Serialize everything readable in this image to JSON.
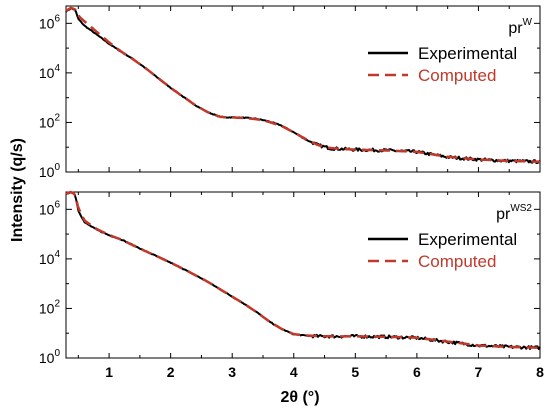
{
  "chart_data": {
    "type": "line",
    "ylabel": "Intensity (q/s)",
    "xlabel": "2θ (°)",
    "xlim": [
      0.3,
      8
    ],
    "ylim": [
      1,
      5000000
    ],
    "yscale": "log",
    "x_ticks": [
      "1",
      "2",
      "3",
      "4",
      "5",
      "6",
      "7",
      "8"
    ],
    "x_tick_values": [
      1,
      2,
      3,
      4,
      5,
      6,
      7,
      8
    ],
    "y_ticks": [
      {
        "base": "10",
        "exp": "0",
        "value": 1
      },
      {
        "base": "10",
        "exp": "2",
        "value": 100
      },
      {
        "base": "10",
        "exp": "4",
        "value": 10000
      },
      {
        "base": "10",
        "exp": "6",
        "value": 1000000
      }
    ],
    "legend": {
      "experimental": "Experimental",
      "computed": "Computed",
      "placement": "top-right"
    },
    "colors": {
      "experimental": "#000000",
      "computed": "#c0392b"
    },
    "panels": [
      {
        "label": "pr",
        "label_sup": "W",
        "series": [
          {
            "name": "Experimental",
            "x": [
              0.3,
              0.38,
              0.45,
              0.5,
              0.6,
              0.8,
              1.0,
              1.2,
              1.4,
              1.6,
              1.8,
              2.0,
              2.2,
              2.4,
              2.6,
              2.8,
              2.9,
              3.0,
              3.2,
              3.4,
              3.6,
              3.8,
              4.0,
              4.2,
              4.4,
              4.6,
              4.8,
              5.0,
              5.5,
              6.0,
              6.5,
              7.0,
              7.5,
              8.0
            ],
            "y": [
              3000000,
              4000000,
              3500000,
              1500000,
              800000,
              350000,
              150000,
              70000,
              35000,
              15000,
              6000,
              2500,
              1100,
              500,
              260,
              170,
              160,
              160,
              155,
              140,
              110,
              75,
              40,
              20,
              12,
              9,
              8.5,
              8,
              7.5,
              6.5,
              4,
              3.2,
              2.8,
              2.6
            ]
          },
          {
            "name": "Computed",
            "x": [
              0.3,
              0.38,
              0.45,
              0.5,
              0.6,
              0.8,
              1.0,
              1.2,
              1.4,
              1.6,
              1.8,
              2.0,
              2.2,
              2.4,
              2.6,
              2.8,
              2.9,
              3.0,
              3.2,
              3.4,
              3.6,
              3.8,
              4.0,
              4.2,
              4.4,
              4.6,
              4.8,
              5.0,
              5.5,
              6.0,
              6.5,
              7.0,
              7.5,
              8.0
            ],
            "y": [
              3200000,
              4200000,
              3700000,
              2000000,
              1200000,
              450000,
              170000,
              72000,
              34000,
              15000,
              6100,
              2500,
              1100,
              500,
              260,
              170,
              160,
              160,
              150,
              135,
              105,
              72,
              40,
              21,
              12,
              9.2,
              8.5,
              8,
              7.4,
              6.5,
              4.1,
              3.2,
              2.8,
              2.6
            ]
          }
        ]
      },
      {
        "label": "pr",
        "label_sup": "WS2",
        "series": [
          {
            "name": "Experimental",
            "x": [
              0.3,
              0.38,
              0.45,
              0.5,
              0.6,
              0.8,
              1.0,
              1.2,
              1.4,
              1.6,
              1.8,
              2.0,
              2.2,
              2.4,
              2.6,
              2.8,
              3.0,
              3.2,
              3.4,
              3.6,
              3.8,
              4.0,
              4.2,
              4.4,
              4.6,
              5.0,
              5.5,
              6.0,
              6.5,
              7.0,
              7.5,
              8.0
            ],
            "y": [
              4000000,
              5000000,
              3800000,
              900000,
              300000,
              150000,
              90000,
              60000,
              35000,
              20000,
              12000,
              7000,
              4000,
              2200,
              1200,
              600,
              300,
              150,
              70,
              30,
              15,
              9,
              8,
              7.5,
              7.5,
              7.5,
              7.2,
              6.5,
              4.5,
              3.2,
              2.8,
              2.6
            ]
          },
          {
            "name": "Computed",
            "x": [
              0.3,
              0.38,
              0.45,
              0.5,
              0.6,
              0.8,
              1.0,
              1.2,
              1.4,
              1.6,
              1.8,
              2.0,
              2.2,
              2.4,
              2.6,
              2.8,
              3.0,
              3.2,
              3.4,
              3.6,
              3.8,
              4.0,
              4.2,
              4.4,
              4.6,
              5.0,
              5.5,
              6.0,
              6.5,
              7.0,
              7.5,
              8.0
            ],
            "y": [
              4200000,
              5200000,
              4000000,
              1100000,
              350000,
              160000,
              92000,
              60000,
              34000,
              20000,
              12000,
              7000,
              4000,
              2200,
              1200,
              600,
              300,
              150,
              70,
              30,
              15,
              9.2,
              8.2,
              7.6,
              7.5,
              7.5,
              7.2,
              6.6,
              4.6,
              3.2,
              2.8,
              2.6
            ]
          }
        ]
      }
    ]
  }
}
